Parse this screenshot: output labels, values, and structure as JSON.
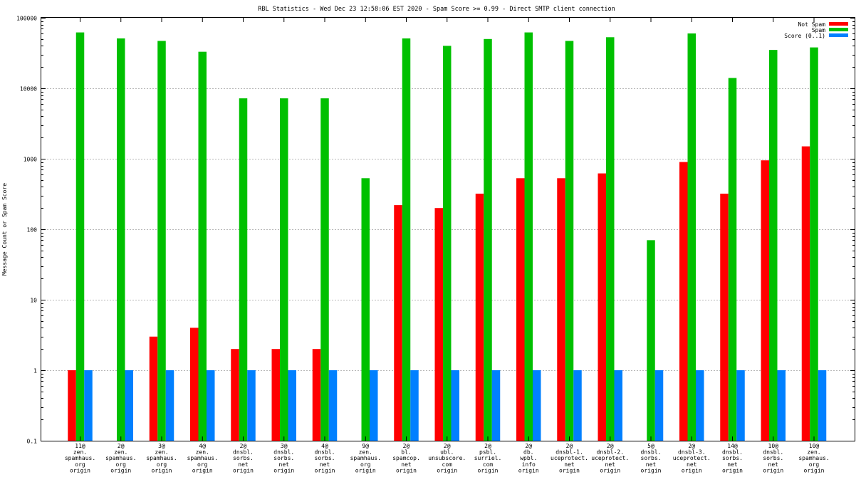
{
  "chart_data": {
    "type": "bar",
    "title": "RBL Statistics - Wed Dec 23 12:58:06 EST 2020 - Spam Score >= 0.99 - Direct SMTP client connection",
    "xlabel": "",
    "ylabel": "Message Count or Spam Score",
    "y_scale": "log",
    "ylim": [
      0.1,
      100000
    ],
    "y_ticks": [
      "0.1",
      "1",
      "10",
      "100",
      "1000",
      "10000",
      "100000"
    ],
    "y_tick_values": [
      0.1,
      1,
      10,
      100,
      1000,
      10000,
      100000
    ],
    "grid": true,
    "legend_position": "top-right",
    "categories": [
      [
        "11@",
        "zen.",
        "spamhaus.",
        "org",
        "origin"
      ],
      [
        "2@",
        "zen.",
        "spamhaus.",
        "org",
        "origin"
      ],
      [
        "3@",
        "zen.",
        "spamhaus.",
        "org",
        "origin"
      ],
      [
        "4@",
        "zen.",
        "spamhaus.",
        "org",
        "origin"
      ],
      [
        "2@",
        "dnsbl.",
        "sorbs.",
        "net",
        "origin"
      ],
      [
        "3@",
        "dnsbl.",
        "sorbs.",
        "net",
        "origin"
      ],
      [
        "4@",
        "dnsbl.",
        "sorbs.",
        "net",
        "origin"
      ],
      [
        "9@",
        "zen.",
        "spamhaus.",
        "org",
        "origin"
      ],
      [
        "2@",
        "bl.",
        "spamcop.",
        "net",
        "origin"
      ],
      [
        "2@",
        "ubl.",
        "unsubscore.",
        "com",
        "origin"
      ],
      [
        "2@",
        "psbl.",
        "surriel.",
        "com",
        "origin"
      ],
      [
        "2@",
        "db.",
        "wpbl.",
        "info",
        "origin"
      ],
      [
        "2@",
        "dnsbl-1.",
        "uceprotect.",
        "net",
        "origin"
      ],
      [
        "2@",
        "dnsbl-2.",
        "uceprotect.",
        "net",
        "origin"
      ],
      [
        "5@",
        "dnsbl.",
        "sorbs.",
        "net",
        "origin"
      ],
      [
        "2@",
        "dnsbl-3.",
        "uceprotect.",
        "net",
        "origin"
      ],
      [
        "14@",
        "dnsbl.",
        "sorbs.",
        "net",
        "origin"
      ],
      [
        "10@",
        "dnsbl.",
        "sorbs.",
        "net",
        "origin"
      ],
      [
        "10@",
        "zen.",
        "spamhaus.",
        "org",
        "origin"
      ]
    ],
    "series": [
      {
        "name": "Not Spam",
        "color": "#ff0000",
        "values": [
          1,
          null,
          3,
          4,
          2,
          2,
          2,
          null,
          220,
          200,
          320,
          530,
          530,
          620,
          null,
          900,
          320,
          950,
          1500
        ]
      },
      {
        "name": "Spam",
        "color": "#00c000",
        "values": [
          62000,
          51000,
          47000,
          33000,
          7200,
          7200,
          7200,
          530,
          51000,
          40000,
          50000,
          62000,
          47000,
          53000,
          70,
          60000,
          14000,
          35000,
          38000
        ]
      },
      {
        "name": "Score (0..1)",
        "color": "#0080ff",
        "values": [
          1,
          1,
          1,
          1,
          1,
          1,
          1,
          1,
          1,
          1,
          1,
          1,
          1,
          1,
          1,
          1,
          1,
          1,
          1
        ]
      }
    ]
  }
}
